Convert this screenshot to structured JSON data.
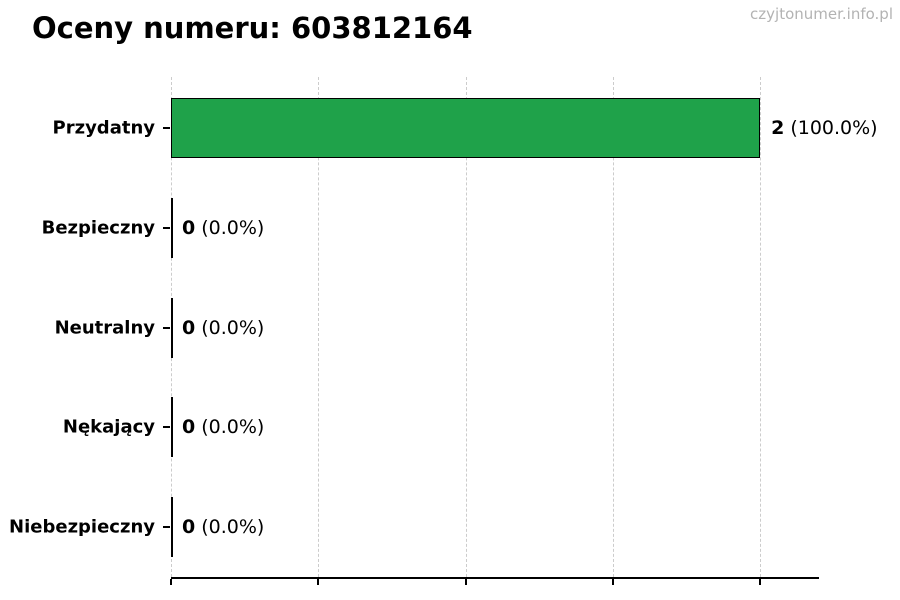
{
  "page": {
    "watermark": "czyjtonumer.info.pl"
  },
  "chart_data": {
    "type": "bar",
    "orientation": "horizontal",
    "title": "Oceny numeru: 603812164",
    "categories": [
      "Przydatny",
      "Bezpieczny",
      "Neutralny",
      "Nękający",
      "Niebezpieczny"
    ],
    "values": [
      2,
      0,
      0,
      0,
      0
    ],
    "percentages": [
      100.0,
      0.0,
      0.0,
      0.0,
      0.0
    ],
    "value_labels": [
      "2",
      "0",
      "0",
      "0",
      "0"
    ],
    "percent_labels": [
      "(100.0%)",
      "(0.0%)",
      "(0.0%)",
      "(0.0%)",
      "(0.0%)"
    ],
    "xlabel": "",
    "ylabel": "",
    "xlim": [
      0,
      2.2
    ],
    "xticks": [
      0,
      0.5,
      1.0,
      1.5,
      2.0
    ],
    "xtick_labels": [
      "",
      "",
      "",
      "",
      ""
    ],
    "grid": true,
    "grid_style": "dashed",
    "grid_color": "#cccccc",
    "bar_color": "#1fa24a",
    "bar_edge_color": "#000000",
    "legend": null
  }
}
